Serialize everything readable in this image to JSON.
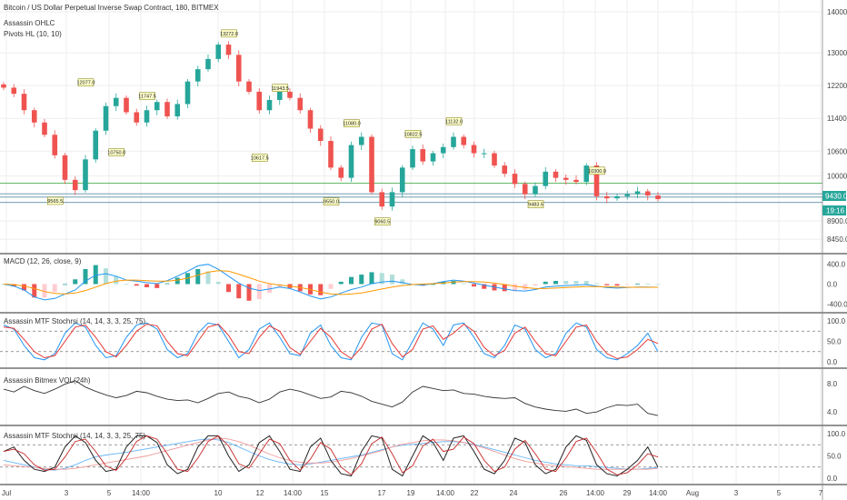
{
  "header": {
    "title": "Bitcoin / US Dollar Perpetual Inverse Swap Contract, 180, BITMEX",
    "indicators": [
      "Assassin OHLC",
      "Pivots HL (10, 10)"
    ]
  },
  "price_tags": {
    "last": "9430.0",
    "countdown": "19:16"
  },
  "colors": {
    "up": "#26a69a",
    "down": "#ef5350",
    "macd": "#2196f3",
    "signal": "#ff9800",
    "stoch_k": "#2196f3",
    "stoch_d": "#e53935",
    "line": "#333333",
    "level_line": "#4caf50"
  },
  "chart_data": [
    {
      "type": "candlestick",
      "panel": "price",
      "x_ticks": [
        "Jul",
        "3",
        "5",
        "14:00",
        "10",
        "12",
        "14:00",
        "15",
        "17",
        "19",
        "14:00",
        "22",
        "24",
        "26",
        "14:00",
        "29",
        "14:00",
        "Aug",
        "3",
        "5",
        "7"
      ],
      "y_ticks": [
        "14000.0",
        "13000.0",
        "12200.0",
        "11400.0",
        "10600.0",
        "10000.0",
        "8900.0",
        "8450.0"
      ],
      "ylim": [
        8300,
        14200
      ],
      "pivot_labels": [
        {
          "text": "12077.0",
          "t": 8,
          "v": 12077
        },
        {
          "text": "11747.5",
          "t": 14,
          "v": 11747
        },
        {
          "text": "10750.0",
          "t": 11,
          "v": 10750
        },
        {
          "text": "9565.5",
          "t": 5,
          "v": 9565
        },
        {
          "text": "13272.0",
          "t": 22,
          "v": 13272
        },
        {
          "text": "11943.5",
          "t": 27,
          "v": 11943
        },
        {
          "text": "10617.5",
          "t": 25,
          "v": 10617
        },
        {
          "text": "11080.0",
          "t": 34,
          "v": 11080
        },
        {
          "text": "9550.0",
          "t": 32,
          "v": 9550
        },
        {
          "text": "9060.5",
          "t": 37,
          "v": 9060
        },
        {
          "text": "10822.5",
          "t": 40,
          "v": 10822
        },
        {
          "text": "11132.0",
          "t": 44,
          "v": 11132
        },
        {
          "text": "9483.5",
          "t": 52,
          "v": 9483
        },
        {
          "text": "10300.0",
          "t": 58,
          "v": 10300
        }
      ],
      "levels": [
        9818,
        9560,
        9480,
        9350
      ],
      "close": [
        12150,
        12000,
        11600,
        11300,
        11000,
        10500,
        9900,
        9650,
        10400,
        11100,
        11700,
        11900,
        11550,
        11300,
        11600,
        11800,
        11450,
        11750,
        12300,
        12600,
        12850,
        13200,
        12950,
        12300,
        12050,
        11600,
        11850,
        12050,
        11900,
        11600,
        11150,
        10850,
        10200,
        9950,
        10750,
        10950,
        9600,
        9250,
        9600,
        10200,
        10650,
        10350,
        10550,
        10700,
        10950,
        10750,
        10550,
        10550,
        10250,
        10050,
        9800,
        9550,
        9750,
        10100,
        9950,
        9900,
        9850,
        10250,
        9500,
        9450,
        9500,
        9550,
        9620,
        9520,
        9430
      ]
    },
    {
      "type": "histogram+line",
      "panel": "MACD",
      "title": "MACD (12, 26, close, 9)",
      "y_ticks": [
        "400.0",
        "0.0",
        "-400.0"
      ],
      "ylim": [
        -450,
        450
      ],
      "macd": [
        0,
        -40,
        -120,
        -260,
        -320,
        -290,
        -200,
        -120,
        60,
        180,
        210,
        160,
        80,
        60,
        30,
        10,
        70,
        160,
        260,
        370,
        400,
        300,
        160,
        20,
        -80,
        -130,
        -100,
        -60,
        -90,
        -160,
        -240,
        -300,
        -260,
        -180,
        -110,
        -60,
        10,
        40,
        60,
        30,
        -10,
        -20,
        10,
        50,
        80,
        60,
        20,
        -20,
        -60,
        -100,
        -130,
        -140,
        -110,
        -60,
        -40,
        -30,
        -20,
        -10,
        -40,
        -70,
        -80,
        -70,
        -60,
        -60,
        -65
      ],
      "signal": [
        0,
        -10,
        -40,
        -90,
        -150,
        -190,
        -200,
        -180,
        -130,
        -60,
        10,
        60,
        80,
        80,
        70,
        60,
        60,
        80,
        120,
        180,
        240,
        270,
        260,
        200,
        130,
        60,
        10,
        -20,
        -40,
        -70,
        -110,
        -160,
        -200,
        -210,
        -200,
        -180,
        -140,
        -100,
        -60,
        -30,
        -10,
        0,
        10,
        20,
        40,
        50,
        50,
        40,
        20,
        -10,
        -40,
        -70,
        -90,
        -90,
        -80,
        -70,
        -60,
        -50,
        -50,
        -55,
        -60,
        -65,
        -65,
        -65,
        -65
      ]
    },
    {
      "type": "line",
      "panel": "stoch1",
      "title": "Assassin MTF Stochrsi (14, 14, 3, 3, 25, 75)",
      "y_ticks": [
        "100.0",
        "50.0",
        "0.0"
      ],
      "ylim": [
        0,
        100
      ],
      "levels": [
        75,
        25
      ],
      "k": [
        90,
        80,
        40,
        10,
        5,
        20,
        70,
        95,
        85,
        40,
        10,
        15,
        60,
        90,
        95,
        80,
        30,
        10,
        20,
        70,
        95,
        90,
        50,
        10,
        30,
        80,
        95,
        60,
        20,
        15,
        70,
        90,
        40,
        10,
        5,
        60,
        95,
        90,
        20,
        5,
        50,
        95,
        80,
        40,
        90,
        95,
        60,
        20,
        10,
        40,
        90,
        80,
        30,
        10,
        20,
        70,
        95,
        85,
        30,
        10,
        5,
        20,
        40,
        70,
        25
      ],
      "d": [
        85,
        82,
        55,
        25,
        10,
        15,
        50,
        85,
        90,
        60,
        25,
        12,
        40,
        75,
        92,
        88,
        50,
        20,
        15,
        50,
        85,
        92,
        65,
        25,
        20,
        60,
        88,
        75,
        35,
        18,
        50,
        82,
        60,
        25,
        8,
        35,
        80,
        92,
        45,
        12,
        30,
        80,
        88,
        55,
        70,
        92,
        75,
        35,
        15,
        28,
        70,
        85,
        50,
        20,
        15,
        50,
        85,
        90,
        50,
        20,
        8,
        12,
        30,
        55,
        45
      ]
    },
    {
      "type": "line",
      "panel": "vol",
      "title": "Assassin Bitmex VOL(24h)",
      "y_ticks": [
        "8.0",
        "4.0"
      ],
      "ylim": [
        3,
        9
      ],
      "values": [
        7.2,
        6.8,
        7.6,
        7.0,
        6.6,
        7.2,
        7.9,
        8.4,
        7.5,
        6.9,
        6.4,
        6.0,
        6.3,
        6.9,
        6.7,
        6.2,
        5.8,
        5.6,
        5.7,
        5.3,
        5.9,
        6.6,
        6.8,
        6.2,
        5.9,
        5.3,
        5.8,
        6.8,
        7.2,
        6.9,
        6.4,
        5.9,
        6.1,
        6.9,
        6.7,
        6.2,
        5.5,
        5.1,
        4.7,
        5.4,
        6.8,
        7.6,
        7.3,
        7.0,
        7.1,
        6.6,
        6.5,
        6.2,
        6.0,
        5.9,
        6.0,
        5.2,
        4.7,
        4.4,
        4.2,
        4.1,
        4.4,
        3.8,
        4.0,
        4.6,
        5.0,
        4.9,
        5.1,
        3.8,
        3.5
      ]
    },
    {
      "type": "line",
      "panel": "stoch2",
      "title": "Assassin MTF Stochrsi (14, 14, 3, 3, 25, 75)",
      "y_ticks": [
        "100.0",
        "50.0",
        "0.0"
      ],
      "ylim": [
        0,
        100
      ],
      "levels": [
        75,
        25
      ],
      "k": [
        60,
        70,
        40,
        20,
        15,
        25,
        70,
        95,
        80,
        40,
        15,
        20,
        70,
        95,
        95,
        80,
        30,
        10,
        20,
        70,
        95,
        95,
        50,
        15,
        30,
        80,
        95,
        60,
        20,
        15,
        70,
        90,
        40,
        10,
        5,
        60,
        95,
        90,
        20,
        5,
        50,
        95,
        80,
        40,
        90,
        95,
        60,
        20,
        10,
        40,
        90,
        80,
        30,
        10,
        20,
        70,
        95,
        85,
        30,
        10,
        5,
        20,
        40,
        70,
        25
      ],
      "slow1": [
        40,
        35,
        30,
        25,
        20,
        18,
        22,
        30,
        40,
        48,
        52,
        55,
        58,
        62,
        66,
        70,
        74,
        78,
        82,
        86,
        88,
        86,
        80,
        70,
        60,
        50,
        42,
        36,
        32,
        30,
        32,
        36,
        40,
        44,
        48,
        52,
        58,
        64,
        70,
        74,
        76,
        78,
        80,
        82,
        82,
        80,
        76,
        70,
        64,
        58,
        52,
        46,
        40,
        36,
        32,
        30,
        28,
        28,
        26,
        24,
        22,
        20,
        20,
        22,
        24
      ],
      "slow2": [
        30,
        28,
        26,
        24,
        22,
        20,
        20,
        22,
        26,
        30,
        34,
        38,
        42,
        46,
        50,
        56,
        62,
        68,
        74,
        80,
        86,
        90,
        88,
        82,
        74,
        64,
        54,
        46,
        40,
        36,
        34,
        34,
        36,
        40,
        44,
        50,
        56,
        62,
        70,
        76,
        80,
        84,
        86,
        86,
        84,
        80,
        74,
        68,
        60,
        52,
        44,
        38,
        34,
        30,
        28,
        26,
        24,
        22,
        20,
        20,
        20,
        20,
        20,
        20,
        22
      ]
    }
  ]
}
